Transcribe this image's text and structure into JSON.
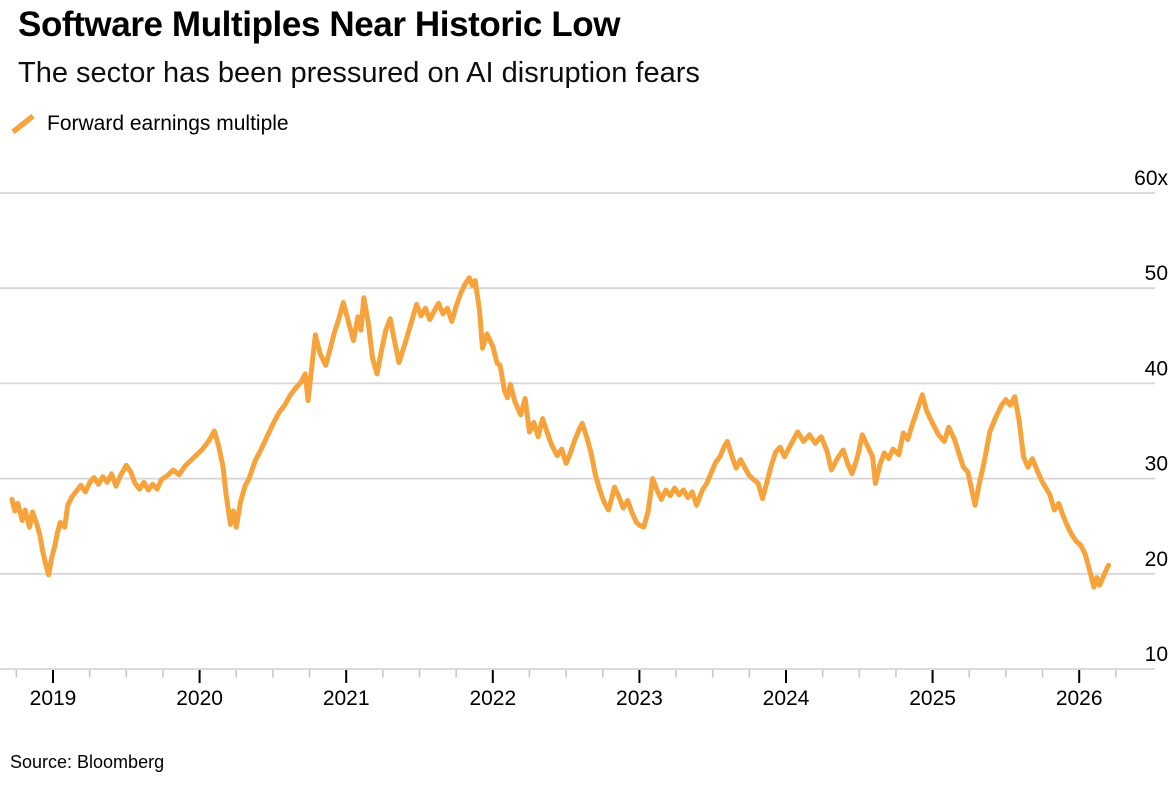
{
  "header": {
    "title": "Software Multiples Near Historic Low",
    "subtitle": "The sector has been pressured on AI disruption fears"
  },
  "legend": {
    "items": [
      {
        "label": "Forward earnings multiple",
        "marker": "slash-icon",
        "color": "#F6A33C"
      }
    ]
  },
  "footer": {
    "source": "Source: Bloomberg"
  },
  "colors": {
    "line": "#F6A33C",
    "gridline": "#D6D6D6",
    "major_tick": "#000000",
    "minor_tick": "#C4C4C4",
    "text": "#000000",
    "background": "#FFFFFF"
  },
  "chart_data": {
    "type": "line",
    "title": "Software Multiples Near Historic Low",
    "subtitle": "The sector has been pressured on AI disruption fears",
    "grid": true,
    "legend_position": "top-left",
    "x_axis": {
      "range": [
        2018.68,
        2026.28
      ],
      "ticks": [
        2019,
        2020,
        2021,
        2022,
        2023,
        2024,
        2025,
        2026
      ],
      "tick_labels": [
        "2019",
        "2020",
        "2021",
        "2022",
        "2023",
        "2024",
        "2025",
        "2026"
      ],
      "minor_tick_interval": 0.25
    },
    "y_axis": {
      "range": [
        10,
        60
      ],
      "ticks": [
        10,
        20,
        30,
        40,
        50,
        60
      ],
      "tick_labels": [
        "10",
        "20",
        "30",
        "40",
        "50",
        "60x"
      ],
      "label_side": "right"
    },
    "series": [
      {
        "name": "Forward earnings multiple",
        "color": "#F6A33C",
        "points": [
          [
            2018.72,
            27.8
          ],
          [
            2018.74,
            26.6
          ],
          [
            2018.76,
            27.4
          ],
          [
            2018.79,
            25.6
          ],
          [
            2018.81,
            26.7
          ],
          [
            2018.84,
            24.9
          ],
          [
            2018.86,
            26.5
          ],
          [
            2018.89,
            25.2
          ],
          [
            2018.91,
            24.1
          ],
          [
            2018.93,
            22.4
          ],
          [
            2018.95,
            21.0
          ],
          [
            2018.97,
            19.9
          ],
          [
            2018.99,
            21.6
          ],
          [
            2019.01,
            22.8
          ],
          [
            2019.03,
            24.3
          ],
          [
            2019.05,
            25.4
          ],
          [
            2019.08,
            24.9
          ],
          [
            2019.1,
            27.2
          ],
          [
            2019.13,
            28.1
          ],
          [
            2019.16,
            28.7
          ],
          [
            2019.19,
            29.3
          ],
          [
            2019.22,
            28.6
          ],
          [
            2019.25,
            29.6
          ],
          [
            2019.28,
            30.1
          ],
          [
            2019.31,
            29.4
          ],
          [
            2019.34,
            30.2
          ],
          [
            2019.37,
            29.6
          ],
          [
            2019.4,
            30.5
          ],
          [
            2019.43,
            29.2
          ],
          [
            2019.46,
            30.3
          ],
          [
            2019.5,
            31.4
          ],
          [
            2019.53,
            30.7
          ],
          [
            2019.56,
            29.5
          ],
          [
            2019.59,
            28.9
          ],
          [
            2019.62,
            29.6
          ],
          [
            2019.65,
            28.8
          ],
          [
            2019.68,
            29.4
          ],
          [
            2019.71,
            28.9
          ],
          [
            2019.74,
            29.9
          ],
          [
            2019.78,
            30.3
          ],
          [
            2019.82,
            30.9
          ],
          [
            2019.86,
            30.4
          ],
          [
            2019.9,
            31.3
          ],
          [
            2019.94,
            31.9
          ],
          [
            2019.98,
            32.5
          ],
          [
            2020.02,
            33.1
          ],
          [
            2020.06,
            33.9
          ],
          [
            2020.1,
            35.0
          ],
          [
            2020.13,
            33.4
          ],
          [
            2020.16,
            31.2
          ],
          [
            2020.18,
            28.4
          ],
          [
            2020.21,
            25.2
          ],
          [
            2020.23,
            26.6
          ],
          [
            2020.25,
            24.9
          ],
          [
            2020.28,
            27.6
          ],
          [
            2020.31,
            29.2
          ],
          [
            2020.34,
            30.1
          ],
          [
            2020.38,
            31.9
          ],
          [
            2020.42,
            33.1
          ],
          [
            2020.46,
            34.4
          ],
          [
            2020.5,
            35.7
          ],
          [
            2020.54,
            36.9
          ],
          [
            2020.58,
            37.7
          ],
          [
            2020.62,
            38.8
          ],
          [
            2020.66,
            39.6
          ],
          [
            2020.69,
            40.1
          ],
          [
            2020.72,
            41.0
          ],
          [
            2020.74,
            38.2
          ],
          [
            2020.77,
            42.4
          ],
          [
            2020.79,
            45.1
          ],
          [
            2020.82,
            43.2
          ],
          [
            2020.86,
            41.9
          ],
          [
            2020.89,
            43.6
          ],
          [
            2020.92,
            45.4
          ],
          [
            2020.95,
            46.8
          ],
          [
            2020.98,
            48.5
          ],
          [
            2021.02,
            46.2
          ],
          [
            2021.05,
            44.5
          ],
          [
            2021.08,
            47.0
          ],
          [
            2021.1,
            45.6
          ],
          [
            2021.12,
            49.0
          ],
          [
            2021.15,
            46.4
          ],
          [
            2021.18,
            42.6
          ],
          [
            2021.21,
            41.0
          ],
          [
            2021.24,
            43.4
          ],
          [
            2021.27,
            45.6
          ],
          [
            2021.3,
            46.8
          ],
          [
            2021.33,
            44.4
          ],
          [
            2021.36,
            42.2
          ],
          [
            2021.4,
            44.1
          ],
          [
            2021.44,
            46.2
          ],
          [
            2021.48,
            48.3
          ],
          [
            2021.51,
            47.1
          ],
          [
            2021.54,
            47.9
          ],
          [
            2021.57,
            46.7
          ],
          [
            2021.6,
            47.6
          ],
          [
            2021.63,
            48.4
          ],
          [
            2021.66,
            47.3
          ],
          [
            2021.69,
            47.9
          ],
          [
            2021.72,
            46.5
          ],
          [
            2021.75,
            48.1
          ],
          [
            2021.78,
            49.4
          ],
          [
            2021.81,
            50.4
          ],
          [
            2021.84,
            51.1
          ],
          [
            2021.86,
            50.3
          ],
          [
            2021.88,
            50.8
          ],
          [
            2021.91,
            47.6
          ],
          [
            2021.93,
            43.7
          ],
          [
            2021.96,
            45.2
          ],
          [
            2022.0,
            43.9
          ],
          [
            2022.03,
            42.1
          ],
          [
            2022.05,
            41.9
          ],
          [
            2022.08,
            39.2
          ],
          [
            2022.1,
            38.5
          ],
          [
            2022.12,
            39.9
          ],
          [
            2022.15,
            38.1
          ],
          [
            2022.19,
            36.7
          ],
          [
            2022.22,
            38.4
          ],
          [
            2022.25,
            34.9
          ],
          [
            2022.28,
            35.9
          ],
          [
            2022.31,
            34.4
          ],
          [
            2022.34,
            36.3
          ],
          [
            2022.37,
            34.9
          ],
          [
            2022.4,
            33.6
          ],
          [
            2022.44,
            32.4
          ],
          [
            2022.47,
            33.1
          ],
          [
            2022.5,
            31.6
          ],
          [
            2022.53,
            32.7
          ],
          [
            2022.56,
            34.1
          ],
          [
            2022.59,
            35.2
          ],
          [
            2022.61,
            35.8
          ],
          [
            2022.64,
            34.4
          ],
          [
            2022.67,
            32.7
          ],
          [
            2022.7,
            30.4
          ],
          [
            2022.73,
            28.8
          ],
          [
            2022.76,
            27.5
          ],
          [
            2022.79,
            26.7
          ],
          [
            2022.83,
            29.1
          ],
          [
            2022.86,
            28.1
          ],
          [
            2022.89,
            26.9
          ],
          [
            2022.92,
            27.7
          ],
          [
            2022.95,
            26.4
          ],
          [
            2022.98,
            25.4
          ],
          [
            2023.0,
            25.1
          ],
          [
            2023.03,
            24.9
          ],
          [
            2023.06,
            26.6
          ],
          [
            2023.09,
            30.0
          ],
          [
            2023.12,
            28.8
          ],
          [
            2023.15,
            27.8
          ],
          [
            2023.18,
            28.8
          ],
          [
            2023.21,
            28.2
          ],
          [
            2023.24,
            29.0
          ],
          [
            2023.27,
            28.3
          ],
          [
            2023.3,
            28.8
          ],
          [
            2023.33,
            28.0
          ],
          [
            2023.36,
            28.6
          ],
          [
            2023.39,
            27.2
          ],
          [
            2023.43,
            28.8
          ],
          [
            2023.46,
            29.5
          ],
          [
            2023.49,
            30.6
          ],
          [
            2023.52,
            31.7
          ],
          [
            2023.55,
            32.3
          ],
          [
            2023.58,
            33.4
          ],
          [
            2023.6,
            33.9
          ],
          [
            2023.63,
            32.4
          ],
          [
            2023.66,
            31.1
          ],
          [
            2023.69,
            32.0
          ],
          [
            2023.72,
            31.1
          ],
          [
            2023.75,
            30.3
          ],
          [
            2023.78,
            29.9
          ],
          [
            2023.81,
            29.5
          ],
          [
            2023.84,
            27.9
          ],
          [
            2023.87,
            29.6
          ],
          [
            2023.9,
            31.4
          ],
          [
            2023.93,
            32.8
          ],
          [
            2023.96,
            33.3
          ],
          [
            2023.99,
            32.3
          ],
          [
            2024.03,
            33.5
          ],
          [
            2024.08,
            34.9
          ],
          [
            2024.12,
            33.9
          ],
          [
            2024.16,
            34.6
          ],
          [
            2024.2,
            33.7
          ],
          [
            2024.24,
            34.4
          ],
          [
            2024.28,
            32.9
          ],
          [
            2024.31,
            30.9
          ],
          [
            2024.35,
            32.1
          ],
          [
            2024.39,
            33.0
          ],
          [
            2024.42,
            31.6
          ],
          [
            2024.45,
            30.5
          ],
          [
            2024.49,
            32.4
          ],
          [
            2024.52,
            34.6
          ],
          [
            2024.56,
            33.3
          ],
          [
            2024.59,
            32.3
          ],
          [
            2024.61,
            29.5
          ],
          [
            2024.64,
            31.4
          ],
          [
            2024.67,
            32.7
          ],
          [
            2024.7,
            32.1
          ],
          [
            2024.73,
            33.1
          ],
          [
            2024.77,
            32.5
          ],
          [
            2024.8,
            34.8
          ],
          [
            2024.83,
            34.1
          ],
          [
            2024.86,
            35.6
          ],
          [
            2024.9,
            37.4
          ],
          [
            2024.93,
            38.8
          ],
          [
            2024.96,
            37.1
          ],
          [
            2025.0,
            35.8
          ],
          [
            2025.04,
            34.6
          ],
          [
            2025.08,
            33.9
          ],
          [
            2025.11,
            35.4
          ],
          [
            2025.15,
            34.1
          ],
          [
            2025.18,
            32.6
          ],
          [
            2025.21,
            31.2
          ],
          [
            2025.24,
            30.7
          ],
          [
            2025.29,
            27.2
          ],
          [
            2025.32,
            29.6
          ],
          [
            2025.35,
            31.6
          ],
          [
            2025.39,
            34.9
          ],
          [
            2025.43,
            36.4
          ],
          [
            2025.47,
            37.7
          ],
          [
            2025.5,
            38.3
          ],
          [
            2025.53,
            37.7
          ],
          [
            2025.56,
            38.6
          ],
          [
            2025.59,
            36.1
          ],
          [
            2025.62,
            32.3
          ],
          [
            2025.65,
            31.2
          ],
          [
            2025.68,
            32.1
          ],
          [
            2025.71,
            31.0
          ],
          [
            2025.74,
            29.9
          ],
          [
            2025.77,
            29.1
          ],
          [
            2025.8,
            28.3
          ],
          [
            2025.83,
            26.7
          ],
          [
            2025.86,
            27.4
          ],
          [
            2025.89,
            26.1
          ],
          [
            2025.92,
            25.0
          ],
          [
            2025.95,
            24.1
          ],
          [
            2025.98,
            23.4
          ],
          [
            2026.01,
            23.0
          ],
          [
            2026.04,
            22.1
          ],
          [
            2026.07,
            20.4
          ],
          [
            2026.1,
            18.6
          ],
          [
            2026.12,
            19.6
          ],
          [
            2026.14,
            18.8
          ],
          [
            2026.17,
            19.9
          ],
          [
            2026.2,
            20.9
          ]
        ]
      }
    ]
  }
}
